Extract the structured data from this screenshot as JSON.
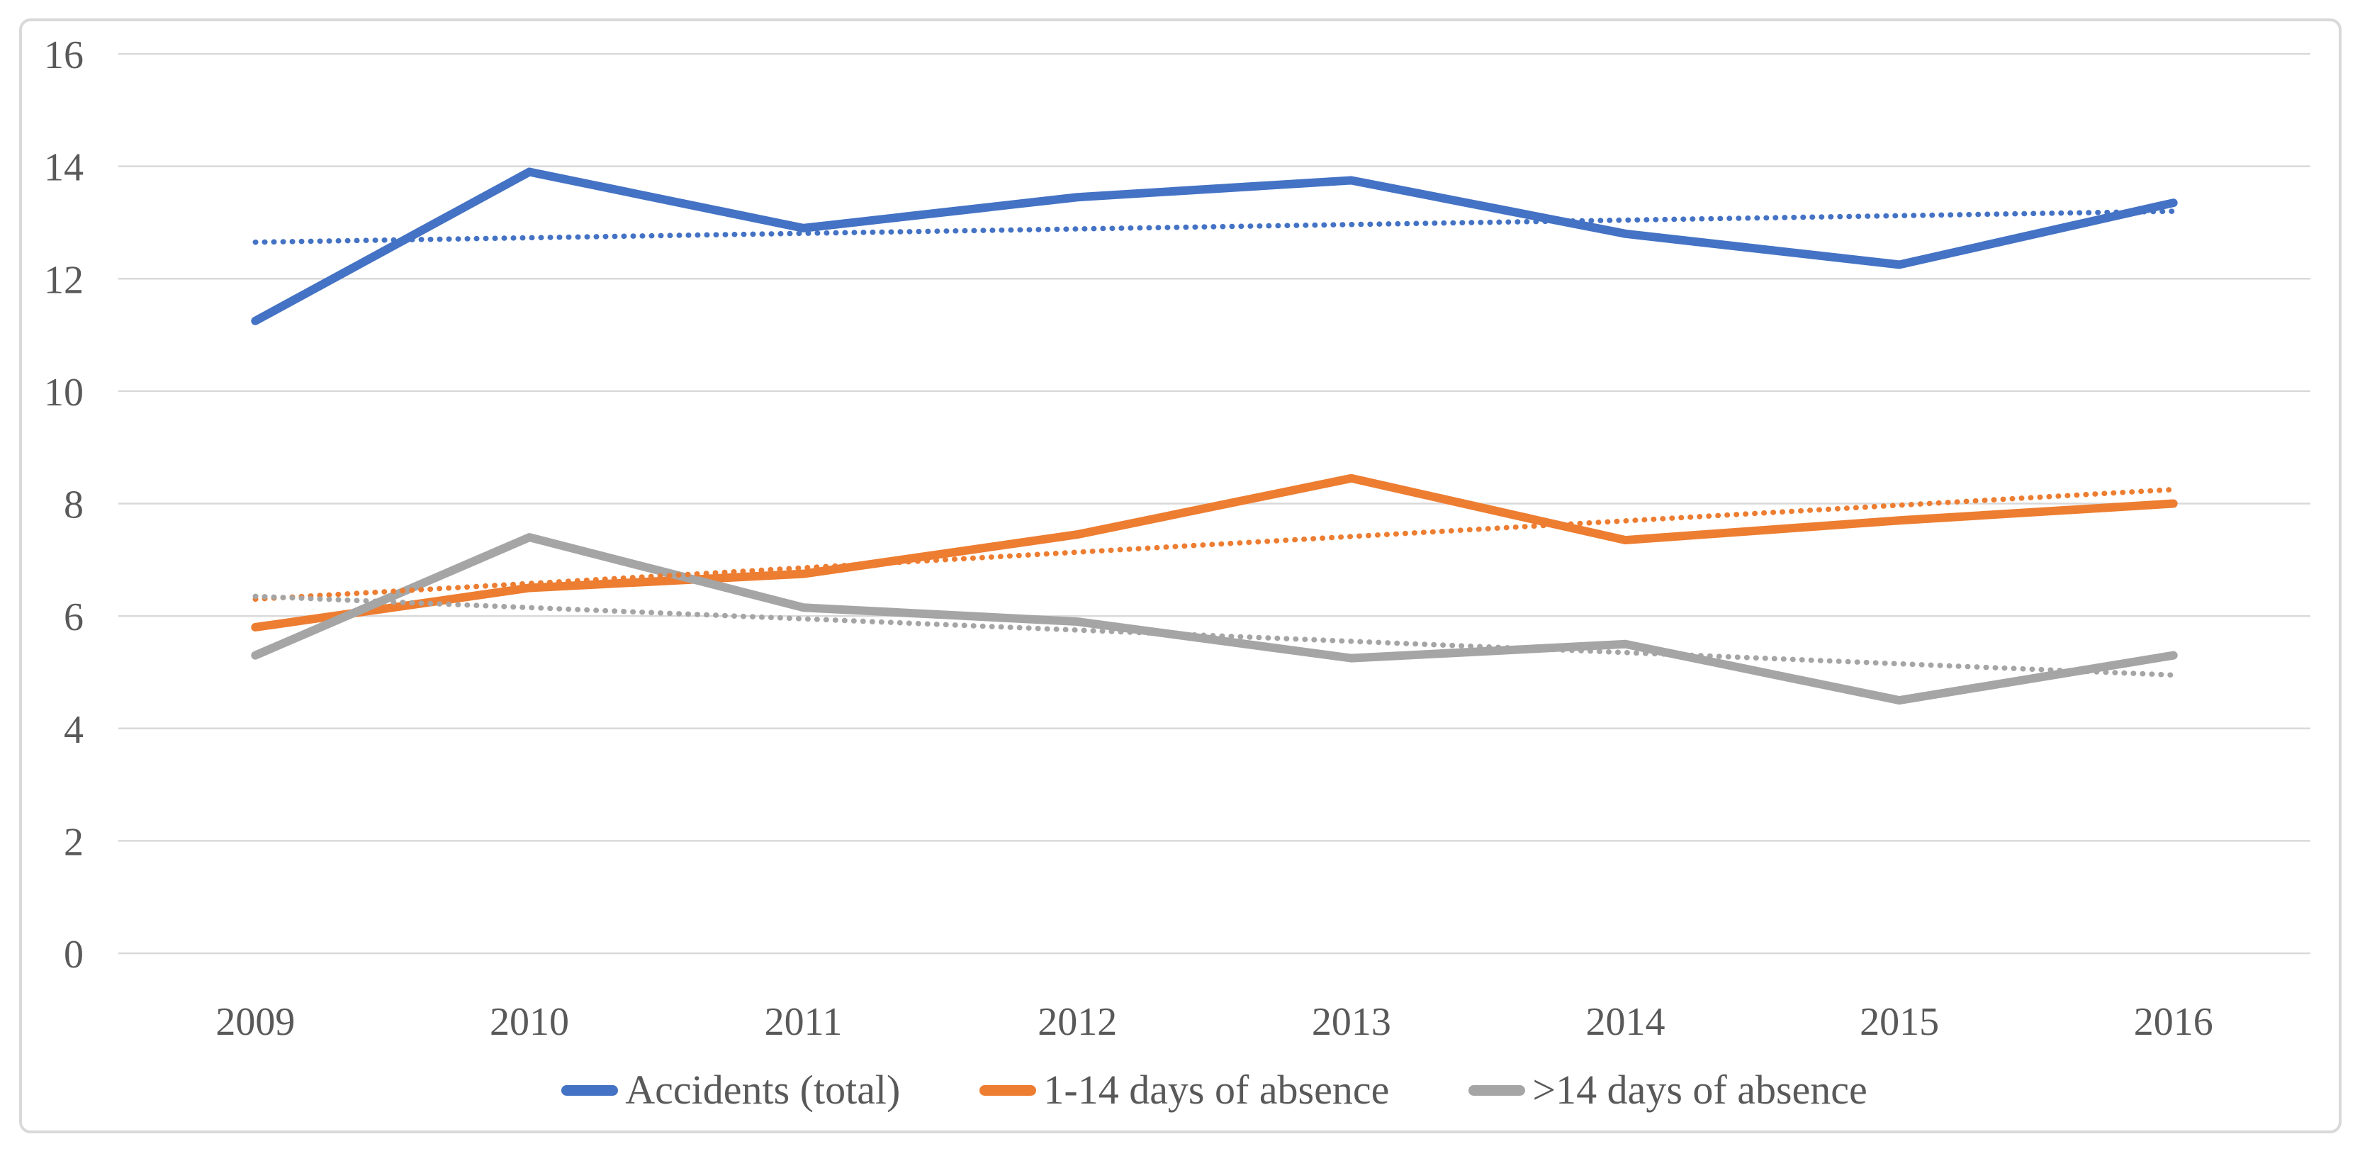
{
  "chart_data": {
    "type": "line",
    "title": "",
    "xlabel": "",
    "ylabel": "",
    "categories": [
      "2009",
      "2010",
      "2011",
      "2012",
      "2013",
      "2014",
      "2015",
      "2016"
    ],
    "y_ticks": [
      "0",
      "2",
      "4",
      "6",
      "8",
      "10",
      "12",
      "14",
      "16"
    ],
    "ylim": [
      0,
      16
    ],
    "grid": true,
    "legend_position": "bottom",
    "series": [
      {
        "name": "Accidents (total)",
        "color": "#4472C4",
        "style": "solid",
        "values": [
          11.25,
          13.9,
          12.9,
          13.45,
          13.75,
          12.8,
          12.25,
          13.35
        ]
      },
      {
        "name": "1-14 days of absence",
        "color": "#ED7D31",
        "style": "solid",
        "values": [
          5.8,
          6.5,
          6.75,
          7.45,
          8.45,
          7.35,
          7.7,
          8.0
        ]
      },
      {
        "name": ">14 days of absence",
        "color": "#A5A5A5",
        "style": "solid",
        "values": [
          5.3,
          7.4,
          6.15,
          5.9,
          5.25,
          5.5,
          4.5,
          5.3
        ]
      }
    ],
    "trendlines": [
      {
        "series": "Accidents (total)",
        "color": "#4472C4",
        "style": "dotted",
        "start_value": 12.65,
        "end_value": 13.2
      },
      {
        "series": "1-14 days of absence",
        "color": "#ED7D31",
        "style": "dotted",
        "start_value": 6.3,
        "end_value": 8.25
      },
      {
        "series": ">14 days of absence",
        "color": "#A5A5A5",
        "style": "dotted",
        "start_value": 6.35,
        "end_value": 4.95
      }
    ]
  },
  "styles": {
    "background": "#FFFFFF",
    "grid_color": "#D9D9D9",
    "frame_border_color": "#D9D9D9",
    "axis_text_color": "#595959"
  }
}
